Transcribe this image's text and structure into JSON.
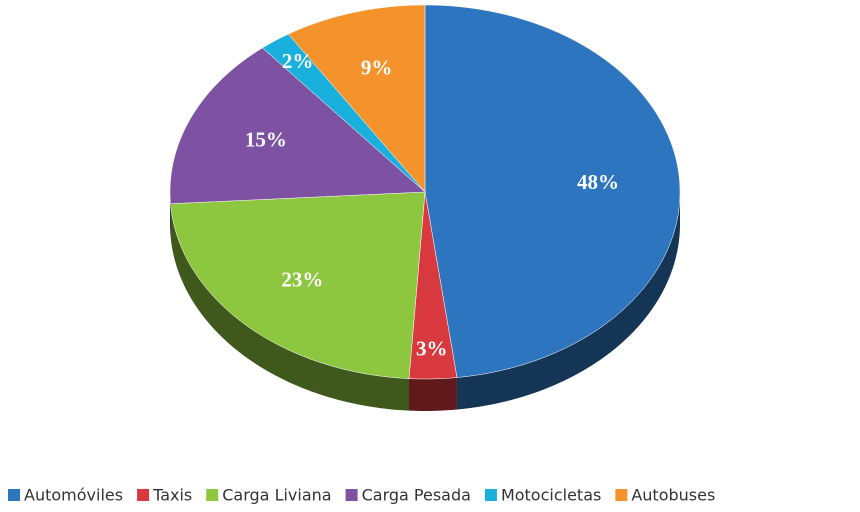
{
  "chart_data": {
    "type": "pie3d",
    "categories": [
      "Automóviles",
      "Taxis",
      "Carga Liviana",
      "Carga Pesada",
      "Motocicletas",
      "Autobuses"
    ],
    "values": [
      48,
      3,
      23,
      15,
      2,
      9
    ],
    "value_labels": [
      "48%",
      "3%",
      "23%",
      "15%",
      "2%",
      "9%"
    ],
    "colors": [
      "#2e75c0",
      "#d7393f",
      "#8dc63f",
      "#7d52a2",
      "#1ab0dd",
      "#f4922b"
    ],
    "legend": "bottom"
  }
}
